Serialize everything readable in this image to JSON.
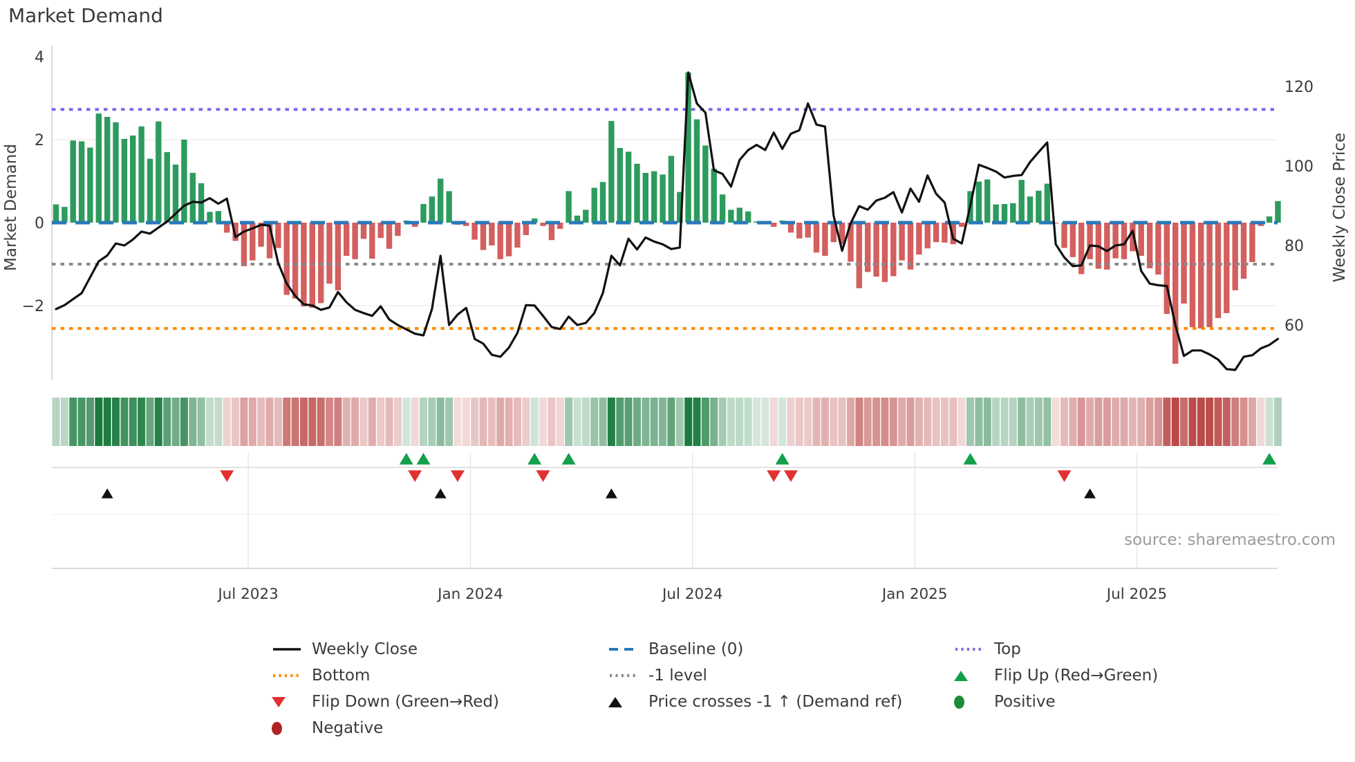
{
  "title": "Market Demand",
  "source": "source: sharemaestro.com",
  "colors": {
    "bar_positive": "#2e9b5e",
    "bar_negative": "#d35f5e",
    "price_line": "#111111",
    "baseline": "#2a7ab9",
    "top_line": "#7b68ee",
    "minus_one_line": "#8a8a8a",
    "bottom_line": "#ff8c00",
    "flip_up_marker": "#12a04b",
    "flip_down_marker": "#e03131",
    "price_cross_marker": "#111111",
    "heat_green": "#1a7a3e",
    "heat_red": "#b94846"
  },
  "chart_data": {
    "type": "bar",
    "subtype": "bar+line combo with heatmap strip and event marker lanes",
    "x_unit": "weekly observations (Feb 2023 - Oct 2025)",
    "x_ticks": {
      "labels": [
        "Jul 2023",
        "Jan 2024",
        "Jul 2024",
        "Jan 2025",
        "Jul 2025"
      ],
      "week_positions": [
        22.5,
        48.5,
        74.5,
        100.5,
        126.5
      ]
    },
    "left_axis": {
      "label": "Market Demand",
      "ticks": [
        "4",
        "2",
        "0",
        "−2"
      ],
      "range": [
        -3.8,
        4.27
      ]
    },
    "right_axis": {
      "label": "Weekly Close Price",
      "ticks": [
        "120",
        "100",
        "80",
        "60"
      ],
      "range": [
        46,
        130.3
      ]
    },
    "series": [
      {
        "name": "Market Demand",
        "type": "bar",
        "axis": "left",
        "values": [
          0.44,
          0.38,
          1.98,
          1.96,
          1.81,
          2.63,
          2.55,
          2.42,
          2.02,
          2.1,
          2.32,
          1.54,
          2.44,
          1.7,
          1.4,
          2.0,
          1.2,
          0.95,
          0.26,
          0.28,
          -0.24,
          -0.44,
          -1.05,
          -0.91,
          -0.58,
          -0.86,
          -0.61,
          -1.74,
          -1.83,
          -2.02,
          -2.05,
          -1.94,
          -1.47,
          -1.63,
          -0.8,
          -0.88,
          -0.39,
          -0.87,
          -0.37,
          -0.63,
          -0.32,
          0.05,
          -0.1,
          0.45,
          0.63,
          1.06,
          0.76,
          -0.05,
          -0.08,
          -0.41,
          -0.66,
          -0.55,
          -0.88,
          -0.81,
          -0.6,
          -0.3,
          0.1,
          -0.08,
          -0.42,
          -0.15,
          0.76,
          0.17,
          0.31,
          0.84,
          0.98,
          2.45,
          1.8,
          1.71,
          1.42,
          1.2,
          1.24,
          1.16,
          1.61,
          0.74,
          3.62,
          2.49,
          1.86,
          1.3,
          0.68,
          0.31,
          0.36,
          0.27,
          0.03,
          0.02,
          -0.1,
          0.05,
          -0.24,
          -0.38,
          -0.36,
          -0.72,
          -0.8,
          -0.47,
          -0.52,
          -0.94,
          -1.58,
          -1.19,
          -1.3,
          -1.43,
          -1.29,
          -0.91,
          -1.13,
          -0.77,
          -0.62,
          -0.47,
          -0.48,
          -0.52,
          -0.1,
          0.76,
          0.99,
          1.04,
          0.44,
          0.45,
          0.47,
          1.03,
          0.63,
          0.77,
          0.94,
          -0.02,
          -0.61,
          -0.83,
          -1.24,
          -0.88,
          -1.11,
          -1.13,
          -0.86,
          -0.88,
          -0.69,
          -0.8,
          -1.1,
          -1.25,
          -2.2,
          -3.4,
          -1.95,
          -2.52,
          -2.55,
          -2.52,
          -2.3,
          -2.18,
          -1.63,
          -1.35,
          -0.95,
          -0.08,
          0.15,
          0.52
        ]
      },
      {
        "name": "Weekly Close",
        "type": "line",
        "axis": "right",
        "values": [
          64,
          65,
          66.5,
          68,
          72,
          76,
          77.5,
          80.5,
          80,
          81.5,
          83.5,
          83,
          84.5,
          86,
          88,
          90,
          91,
          90.8,
          91.9,
          90.5,
          91.8,
          82.1,
          83.5,
          84.3,
          85.2,
          85.0,
          75.6,
          70.4,
          67.3,
          65.2,
          64.9,
          63.8,
          64.4,
          68.3,
          65.7,
          63.8,
          63.0,
          62.3,
          64.7,
          61.4,
          60.0,
          58.9,
          57.8,
          57.4,
          64.0,
          77.4,
          60.0,
          62.6,
          64.3,
          56.5,
          55.3,
          52.5,
          52.0,
          54.3,
          58.0,
          65.0,
          64.9,
          62.3,
          59.5,
          59.0,
          62.1,
          60.0,
          60.5,
          63.0,
          68.0,
          77.4,
          75.0,
          81.7,
          79.0,
          82.0,
          81.0,
          80.3,
          79.1,
          79.5,
          123.5,
          115.7,
          113.4,
          98.9,
          98.0,
          94.8,
          101.5,
          104.0,
          105.3,
          104.0,
          108.4,
          104.3,
          108.1,
          109.0,
          115.7,
          110.4,
          109.9,
          87.5,
          78.7,
          85.6,
          89.9,
          89.0,
          91.3,
          92.0,
          93.4,
          88.3,
          94.3,
          91.0,
          97.6,
          93.0,
          90.8,
          81.7,
          80.5,
          90.0,
          100.3,
          99.5,
          98.6,
          97.1,
          97.5,
          97.7,
          101.0,
          103.5,
          105.9,
          80.3,
          77.0,
          74.8,
          75.0,
          80.0,
          79.8,
          78.6,
          80.0,
          80.3,
          83.7,
          73.6,
          70.4,
          70.0,
          69.8,
          60.0,
          52.2,
          53.6,
          53.6,
          52.6,
          51.3,
          48.9,
          48.7,
          52.0,
          52.4,
          54.1,
          55.0,
          56.5
        ]
      }
    ],
    "reference_lines": [
      {
        "name": "Top",
        "value": 2.73,
        "axis": "left",
        "style": "dotted",
        "color": "#7b68ee"
      },
      {
        "name": "Baseline (0)",
        "value": 0,
        "axis": "left",
        "style": "dashed",
        "color": "#2a7ab9"
      },
      {
        "name": "-1 level",
        "value": -1,
        "axis": "left",
        "style": "dotted",
        "color": "#8a8a8a"
      },
      {
        "name": "Bottom",
        "value": -2.55,
        "axis": "left",
        "style": "dotted",
        "color": "#ff8c00"
      }
    ],
    "markers": {
      "flip_up": {
        "label": "Flip Up (Red→Green)",
        "weeks": [
          41,
          43,
          56,
          60,
          85,
          107,
          142
        ]
      },
      "flip_down": {
        "label": "Flip Down (Green→Red)",
        "weeks": [
          20,
          42,
          47,
          57,
          84,
          86,
          118
        ]
      },
      "price_cross": {
        "label": "Price crosses -1 ↑ (Demand ref)",
        "weeks": [
          6,
          45,
          65,
          121
        ]
      }
    },
    "heatmap_strip": {
      "source_series": "Market Demand",
      "positive_color": "#1a7a3e",
      "negative_color": "#b94846"
    }
  },
  "legend": {
    "columns": [
      {
        "items": [
          {
            "swatch": "line-solid",
            "color": "#111111",
            "label": "Weekly Close"
          },
          {
            "swatch": "dotted",
            "color": "#ff8c00",
            "label": "Bottom"
          },
          {
            "swatch": "tri-down",
            "color": "#e03131",
            "label": "Flip Down (Green→Red)"
          },
          {
            "swatch": "circle",
            "color": "#b22222",
            "label": "Negative"
          }
        ]
      },
      {
        "items": [
          {
            "swatch": "dashed",
            "color": "#2a7ab9",
            "label": "Baseline (0)"
          },
          {
            "swatch": "dotted",
            "color": "#8a8a8a",
            "label": "-1 level"
          },
          {
            "swatch": "tri-up",
            "color": "#111111",
            "label": "Price crosses -1 ↑ (Demand ref)"
          }
        ]
      },
      {
        "items": [
          {
            "swatch": "dotted",
            "color": "#7b68ee",
            "label": "Top"
          },
          {
            "swatch": "tri-up",
            "color": "#12a04b",
            "label": "Flip Up (Red→Green)"
          },
          {
            "swatch": "circle",
            "color": "#1e8b3a",
            "label": "Positive"
          }
        ]
      }
    ]
  }
}
